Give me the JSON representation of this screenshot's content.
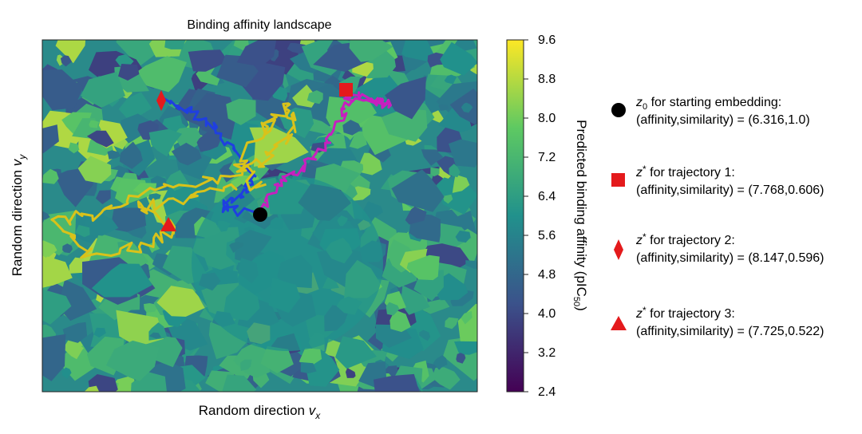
{
  "chart_data": {
    "type": "heatmap",
    "title": "Binding affinity landscape",
    "xlabel": "Random direction",
    "xlabel_sub": "x",
    "xlabel_var": "v",
    "ylabel": "Random direction",
    "ylabel_var": "v",
    "ylabel_sub": "y",
    "colorbar": {
      "label": "Predicted binding affinity (pIC",
      "label_sub": "50",
      "label_end": ")",
      "range": [
        2.4,
        9.6
      ],
      "ticks": [
        "9.6",
        "8.8",
        "8.0",
        "7.2",
        "6.4",
        "5.6",
        "4.8",
        "4.0",
        "3.2",
        "2.4"
      ],
      "colormap": [
        "#440154",
        "#3b528b",
        "#21918c",
        "#5ec962",
        "#fde725"
      ]
    },
    "axis_ticks_visible": false,
    "grid": false,
    "markers": [
      {
        "symbol": "circle",
        "color": "#000000",
        "label_var": "z",
        "label_sub": "0",
        "label_text": " for starting embedding:",
        "detail": "(affinity,similarity) = (6.316,1.0)"
      },
      {
        "symbol": "square",
        "color": "#e41a1c",
        "label_var": "z",
        "label_sup": "*",
        "label_text": " for trajectory 1:",
        "detail": "(affinity,similarity) = (7.768,0.606)"
      },
      {
        "symbol": "diamond",
        "color": "#e41a1c",
        "label_var": "z",
        "label_sup": "*",
        "label_text": " for trajectory 2:",
        "detail": "(affinity,similarity) = (8.147,0.596)"
      },
      {
        "symbol": "triangle",
        "color": "#e41a1c",
        "label_var": "z",
        "label_sup": "*",
        "label_text": " for trajectory 3:",
        "detail": "(affinity,similarity) = (7.725,0.522)"
      }
    ],
    "trajectories": [
      {
        "id": 1,
        "color": "#c71fbf"
      },
      {
        "id": 2,
        "color": "#1f3fe0"
      },
      {
        "id": 3,
        "color": "#d9c21a"
      }
    ]
  }
}
